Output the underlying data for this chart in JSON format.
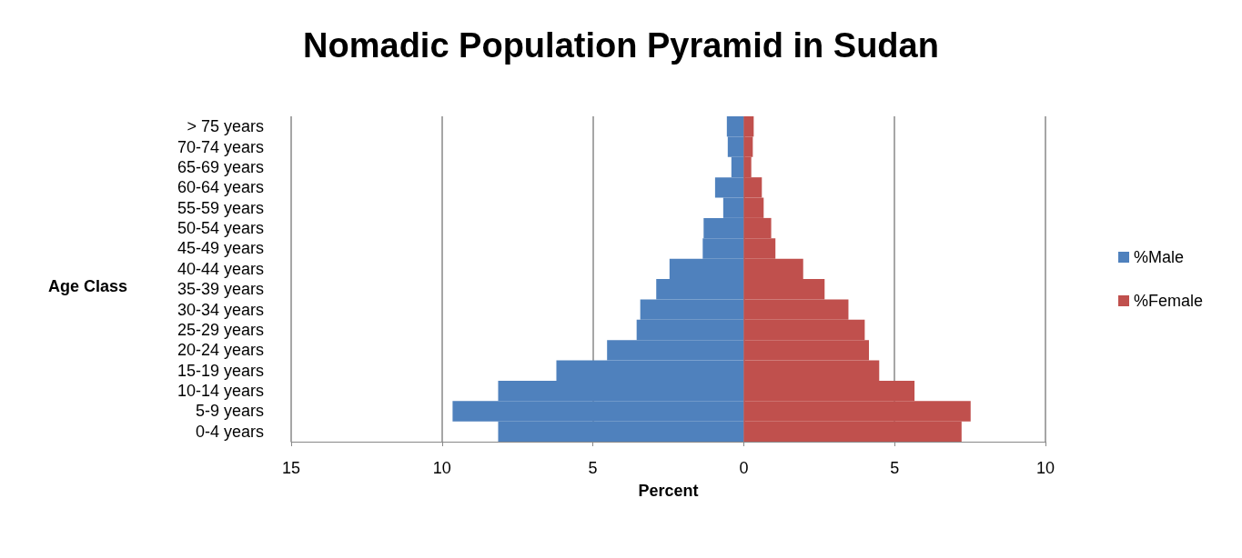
{
  "chart_data": {
    "type": "bar",
    "orientation": "horizontal",
    "title": "Nomadic Population Pyramid in Sudan",
    "xlabel": "Percent",
    "ylabel": "Age Class",
    "categories": [
      "> 75 years",
      "70-74 years",
      "65-69 years",
      "60-64 years",
      "55-59 years",
      "50-54 years",
      "45-49 years",
      "40-44 years",
      "35-39 years",
      "30-34 years",
      "25-29 years",
      "20-24 years",
      "15-19 years",
      "10-14 years",
      "5-9 years",
      "0-4 years"
    ],
    "series": [
      {
        "name": "%Male",
        "color": "#4f81bd",
        "values": [
          -0.56,
          -0.53,
          -0.41,
          -0.95,
          -0.68,
          -1.33,
          -1.36,
          -2.46,
          -2.9,
          -3.43,
          -3.55,
          -4.53,
          -6.21,
          -8.14,
          -9.65,
          -8.14
        ]
      },
      {
        "name": "%Female",
        "color": "#c0504d",
        "values": [
          0.33,
          0.3,
          0.25,
          0.6,
          0.66,
          0.91,
          1.05,
          1.97,
          2.68,
          3.47,
          4.01,
          4.15,
          4.49,
          5.66,
          7.52,
          7.22
        ]
      }
    ],
    "xlim": [
      -15,
      10
    ],
    "xticks": [
      {
        "value": -15,
        "label": "15"
      },
      {
        "value": -10,
        "label": "10"
      },
      {
        "value": -5,
        "label": "5"
      },
      0,
      5,
      10
    ],
    "grid": "x",
    "legend": "right",
    "stacked": true
  }
}
